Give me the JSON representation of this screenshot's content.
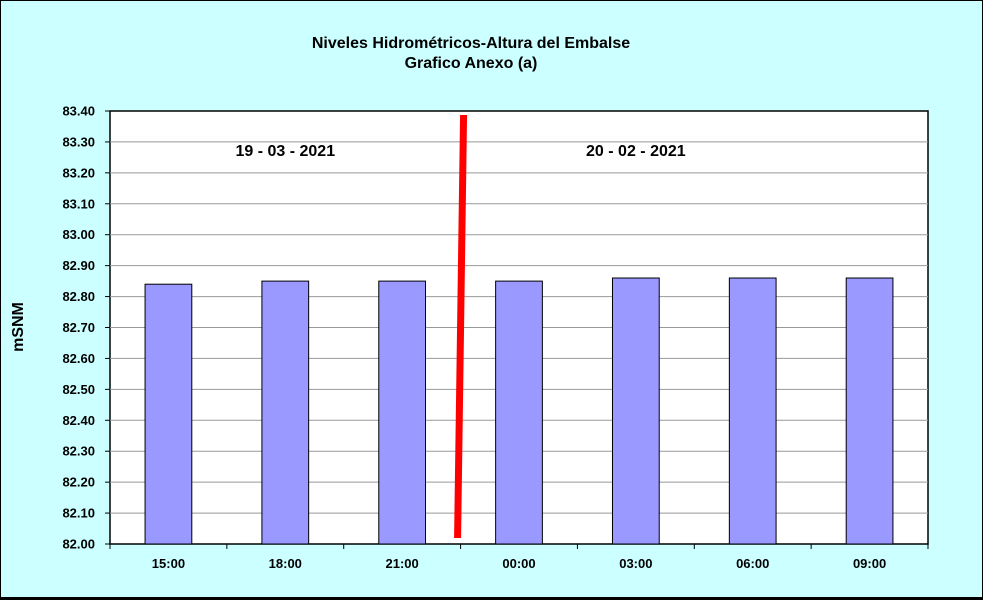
{
  "chart_data": {
    "type": "bar",
    "title": "Niveles Hidrométricos-Altura del Embalse",
    "subtitle": "Grafico Anexo (a)",
    "xlabel": "",
    "ylabel": "mSNM",
    "categories": [
      "15:00",
      "18:00",
      "21:00",
      "00:00",
      "03:00",
      "06:00",
      "09:00"
    ],
    "values": [
      82.84,
      82.85,
      82.85,
      82.85,
      82.86,
      82.86,
      82.86
    ],
    "ylim": [
      82.0,
      83.4
    ],
    "yticks": [
      "82.00",
      "82.10",
      "82.20",
      "82.30",
      "82.40",
      "82.50",
      "82.60",
      "82.70",
      "82.80",
      "82.90",
      "83.00",
      "83.10",
      "83.20",
      "83.30",
      "83.40"
    ],
    "grid": true,
    "legend": "none",
    "annotations": [
      {
        "text": "19 - 03 - 2021",
        "x_category": "18:00",
        "y": 83.27
      },
      {
        "text": "20 - 02 - 2021",
        "x_category": "03:00",
        "y": 83.27
      }
    ],
    "divider": {
      "between": [
        "21:00",
        "00:00"
      ],
      "color": "#ff0000"
    },
    "colors": {
      "background": "#ccffff",
      "plot": "#ffffff",
      "bar": "#9999ff",
      "grid": "#999999"
    }
  }
}
